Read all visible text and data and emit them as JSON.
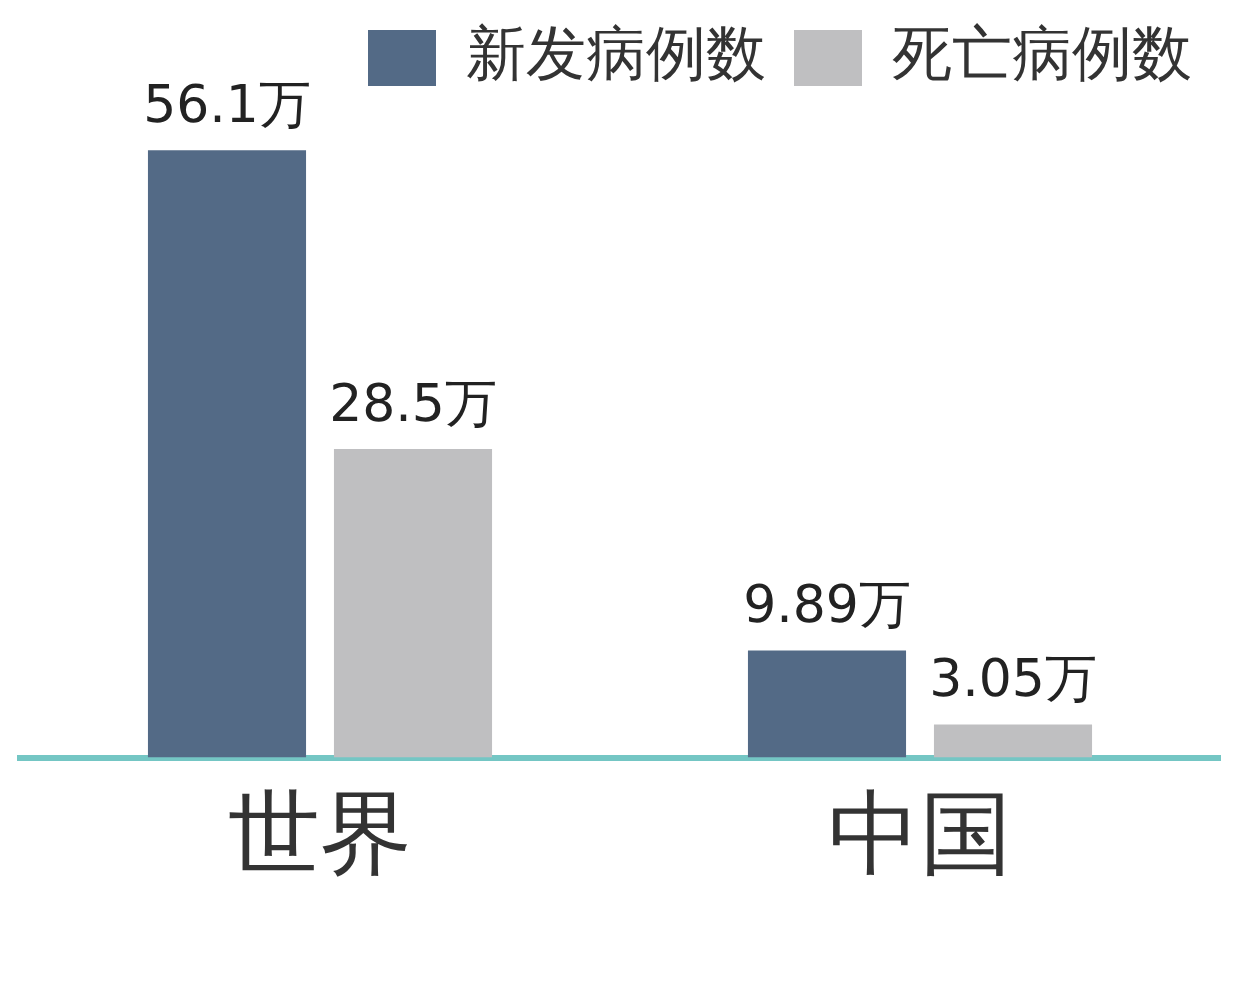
{
  "chart_data": {
    "type": "bar",
    "categories": [
      "世界",
      "中国"
    ],
    "series": [
      {
        "name": "新发病例数",
        "color": "#536a86",
        "values": [
          56.1,
          9.89
        ],
        "value_labels": [
          "56.1万",
          "9.89万"
        ]
      },
      {
        "name": "死亡病例数",
        "color": "#bfbfc1",
        "values": [
          28.5,
          3.05
        ],
        "value_labels": [
          "28.5万",
          "3.05万"
        ]
      }
    ],
    "legend": "top right",
    "grid": false
  }
}
